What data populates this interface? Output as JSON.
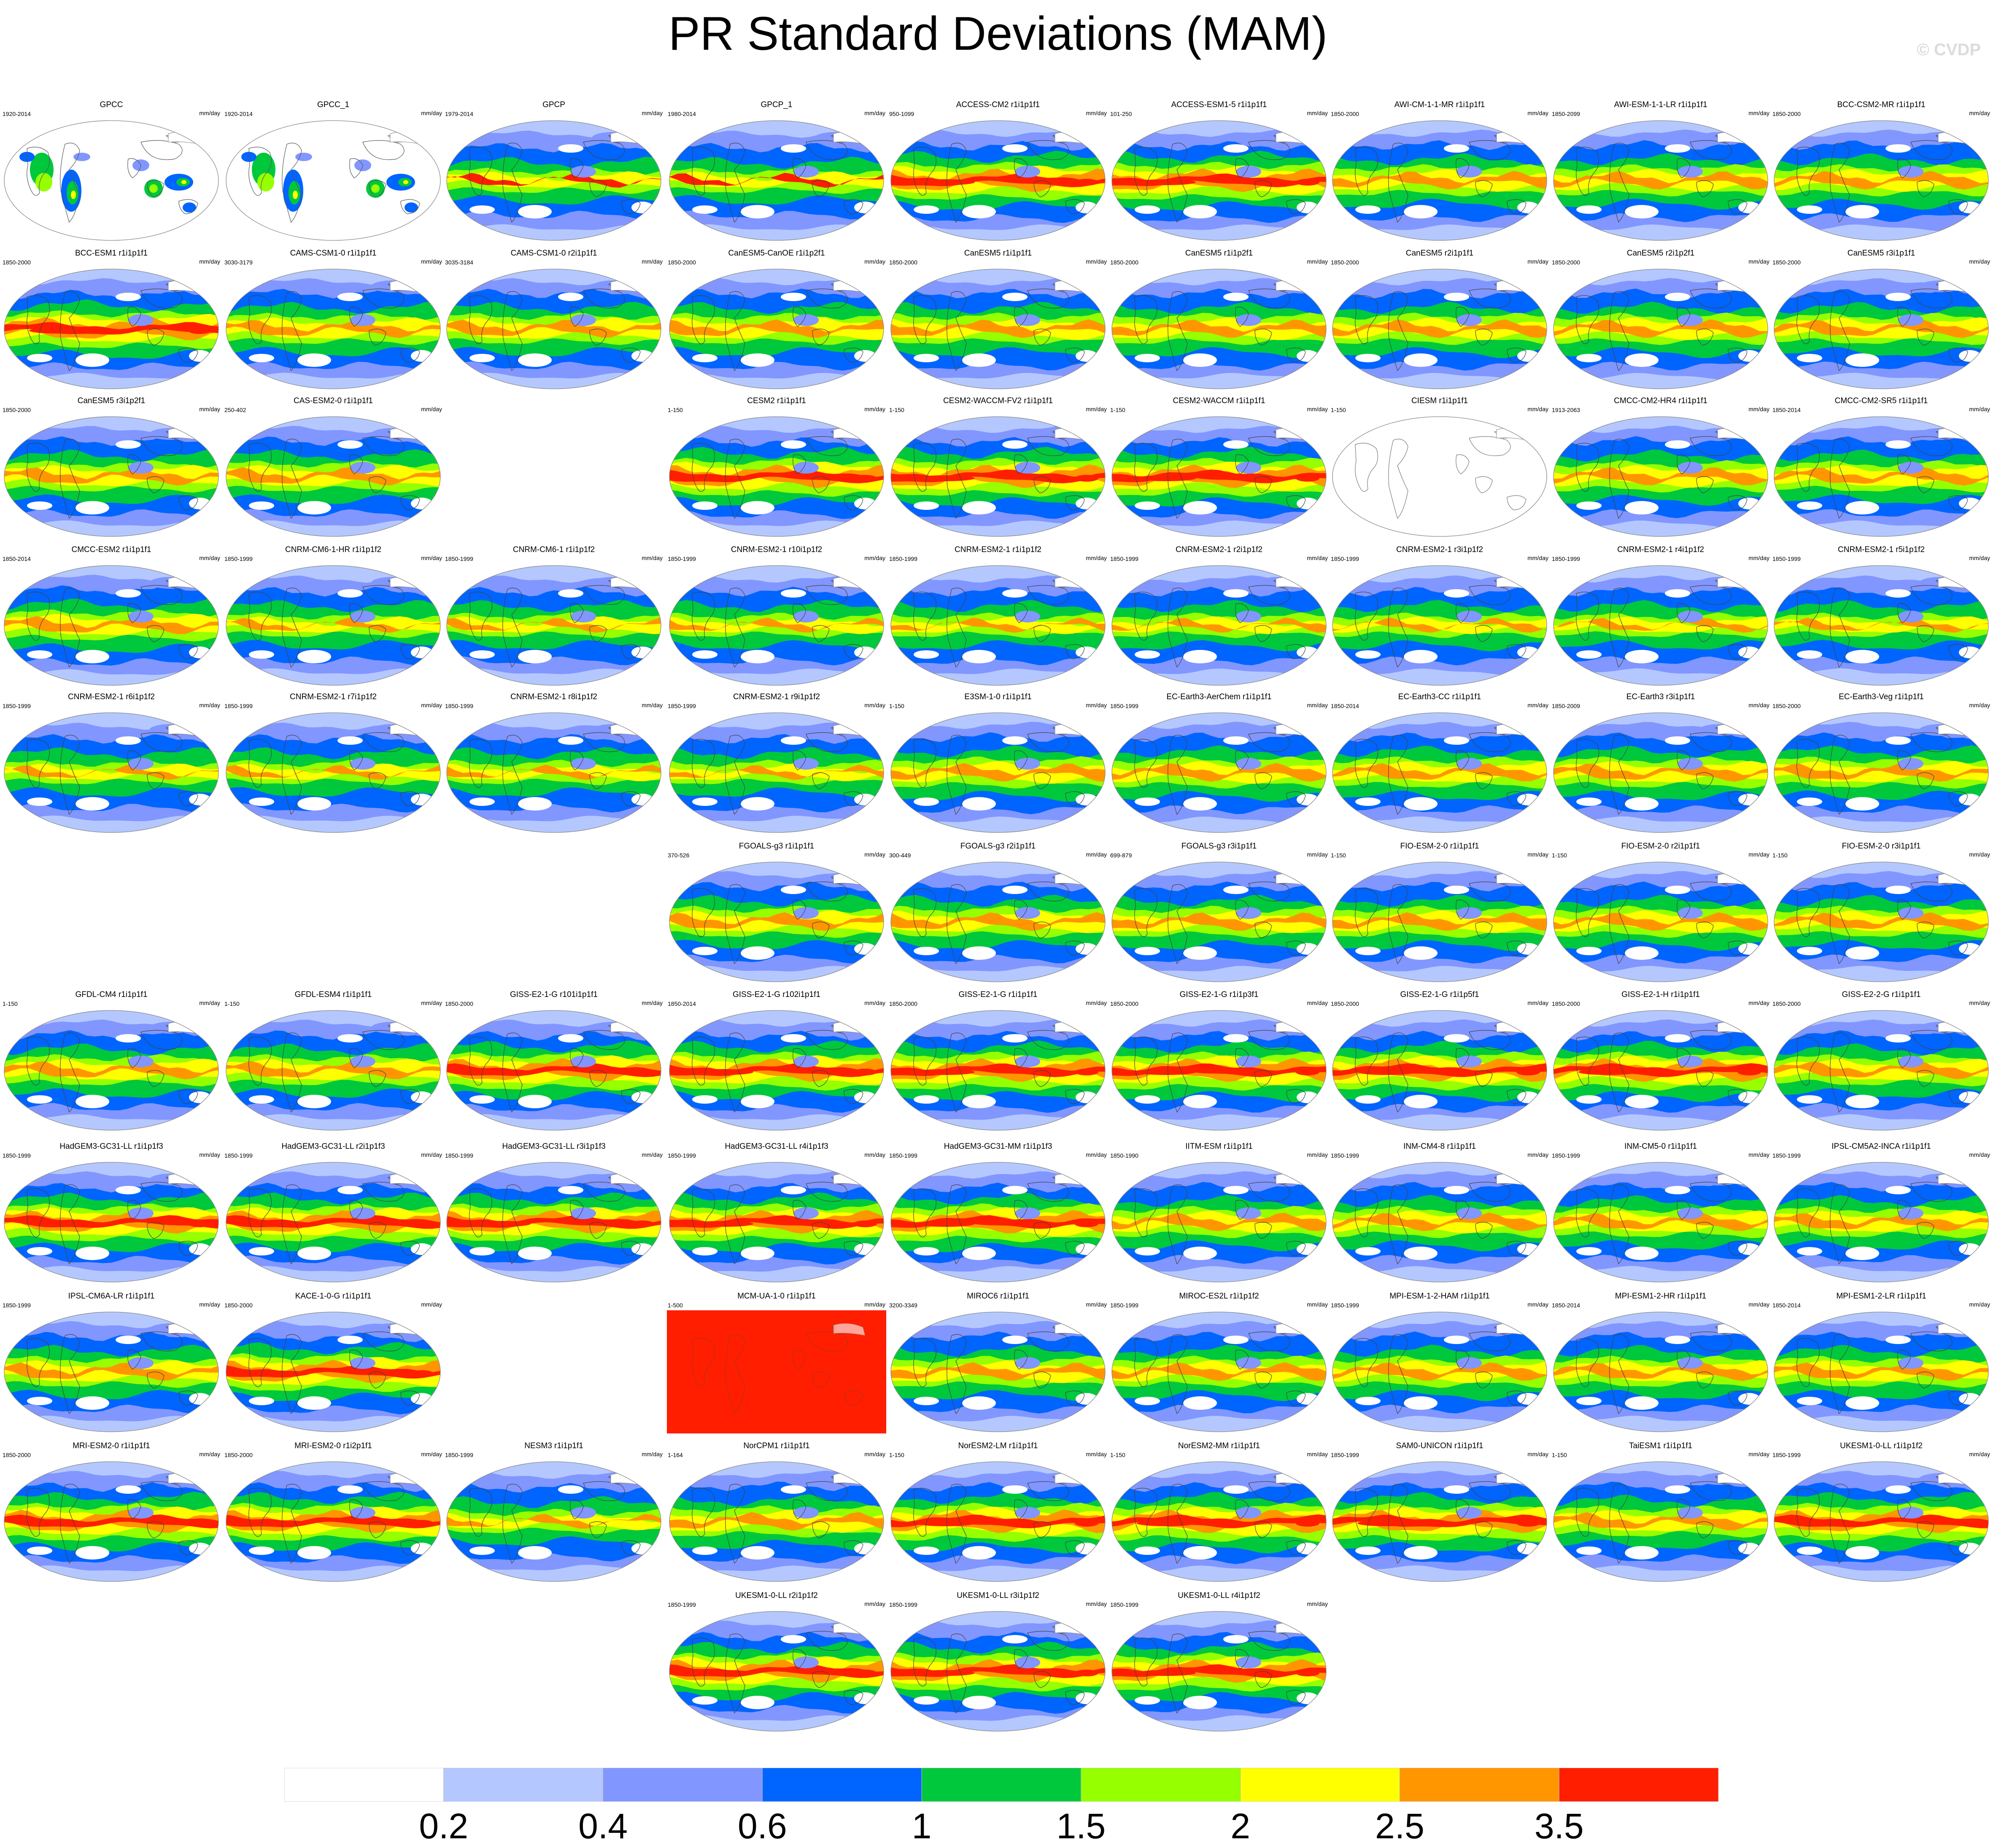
{
  "title": "PR Standard Deviations (MAM)",
  "watermark": "© CVDP",
  "chart_data": {
    "type": "map-panels",
    "title": "PR Standard Deviations (MAM)",
    "units": "mm/day",
    "colorbar": {
      "levels": [
        "0.2",
        "0.4",
        "0.6",
        "1",
        "1.5",
        "2",
        "2.5",
        "3.5"
      ],
      "colors": [
        "#ffffff",
        "#b4c8ff",
        "#8296ff",
        "#0064ff",
        "#00c83c",
        "#96ff00",
        "#ffff00",
        "#ff9600",
        "#ff1e00"
      ]
    },
    "panels": [
      {
        "title": "GPCC",
        "years": "1920-2014",
        "units": "mm/day",
        "row": 0,
        "col": 0,
        "style": "obs_land"
      },
      {
        "title": "GPCC_1",
        "years": "1920-2014",
        "units": "mm/day",
        "row": 0,
        "col": 1,
        "style": "obs_land"
      },
      {
        "title": "GPCP",
        "years": "1979-2014",
        "units": "mm/day",
        "row": 0,
        "col": 2,
        "style": "obs"
      },
      {
        "title": "GPCP_1",
        "years": "1980-2014",
        "units": "mm/day",
        "row": 0,
        "col": 3,
        "style": "obs"
      },
      {
        "title": "ACCESS-CM2 r1i1p1f1",
        "years": "950-1099",
        "units": "mm/day",
        "row": 0,
        "col": 4,
        "style": "strong"
      },
      {
        "title": "ACCESS-ESM1-5 r1i1p1f1",
        "years": "101-250",
        "units": "mm/day",
        "row": 0,
        "col": 5,
        "style": "strong"
      },
      {
        "title": "AWI-CM-1-1-MR r1i1p1f1",
        "years": "1850-2000",
        "units": "mm/day",
        "row": 0,
        "col": 6,
        "style": "medium"
      },
      {
        "title": "AWI-ESM-1-1-LR r1i1p1f1",
        "years": "1850-2099",
        "units": "mm/day",
        "row": 0,
        "col": 7,
        "style": "medium"
      },
      {
        "title": "BCC-CSM2-MR r1i1p1f1",
        "years": "1850-2000",
        "units": "mm/day",
        "row": 0,
        "col": 8,
        "style": "medium"
      },
      {
        "title": "BCC-ESM1 r1i1p1f1",
        "years": "1850-2000",
        "units": "mm/day",
        "row": 1,
        "col": 0,
        "style": "strong"
      },
      {
        "title": "CAMS-CSM1-0 r1i1p1f1",
        "years": "3030-3179",
        "units": "mm/day",
        "row": 1,
        "col": 1,
        "style": "medium"
      },
      {
        "title": "CAMS-CSM1-0 r2i1p1f1",
        "years": "3035-3184",
        "units": "mm/day",
        "row": 1,
        "col": 2,
        "style": "medium"
      },
      {
        "title": "CanESM5-CanOE r1i1p2f1",
        "years": "1850-2000",
        "units": "mm/day",
        "row": 1,
        "col": 3,
        "style": "medium"
      },
      {
        "title": "CanESM5 r1i1p1f1",
        "years": "1850-2000",
        "units": "mm/day",
        "row": 1,
        "col": 4,
        "style": "medium"
      },
      {
        "title": "CanESM5 r1i1p2f1",
        "years": "1850-2000",
        "units": "mm/day",
        "row": 1,
        "col": 5,
        "style": "medium"
      },
      {
        "title": "CanESM5 r2i1p1f1",
        "years": "1850-2000",
        "units": "mm/day",
        "row": 1,
        "col": 6,
        "style": "medium"
      },
      {
        "title": "CanESM5 r2i1p2f1",
        "years": "1850-2000",
        "units": "mm/day",
        "row": 1,
        "col": 7,
        "style": "medium"
      },
      {
        "title": "CanESM5 r3i1p1f1",
        "years": "1850-2000",
        "units": "mm/day",
        "row": 1,
        "col": 8,
        "style": "medium"
      },
      {
        "title": "CanESM5 r3i1p2f1",
        "years": "1850-2000",
        "units": "mm/day",
        "row": 2,
        "col": 0,
        "style": "medium"
      },
      {
        "title": "CAS-ESM2-0 r1i1p1f1",
        "years": "250-402",
        "units": "mm/day",
        "row": 2,
        "col": 1,
        "style": "medium"
      },
      {
        "title": "CESM2 r1i1p1f1",
        "years": "1-150",
        "units": "mm/day",
        "row": 2,
        "col": 3,
        "style": "strong"
      },
      {
        "title": "CESM2-WACCM-FV2 r1i1p1f1",
        "years": "1-150",
        "units": "mm/day",
        "row": 2,
        "col": 4,
        "style": "strong"
      },
      {
        "title": "CESM2-WACCM r1i1p1f1",
        "years": "1-150",
        "units": "mm/day",
        "row": 2,
        "col": 5,
        "style": "strong"
      },
      {
        "title": "CIESM r1i1p1f1",
        "years": "1-150",
        "units": "mm/day",
        "row": 2,
        "col": 6,
        "style": "empty"
      },
      {
        "title": "CMCC-CM2-HR4 r1i1p1f1",
        "years": "1913-2063",
        "units": "mm/day",
        "row": 2,
        "col": 7,
        "style": "medium"
      },
      {
        "title": "CMCC-CM2-SR5 r1i1p1f1",
        "years": "1850-2014",
        "units": "mm/day",
        "row": 2,
        "col": 8,
        "style": "medium"
      },
      {
        "title": "CMCC-ESM2 r1i1p1f1",
        "years": "1850-2014",
        "units": "mm/day",
        "row": 3,
        "col": 0,
        "style": "medium"
      },
      {
        "title": "CNRM-CM6-1-HR r1i1p1f2",
        "years": "1850-1999",
        "units": "mm/day",
        "row": 3,
        "col": 1,
        "style": "weak"
      },
      {
        "title": "CNRM-CM6-1 r1i1p1f2",
        "years": "1850-1999",
        "units": "mm/day",
        "row": 3,
        "col": 2,
        "style": "weak"
      },
      {
        "title": "CNRM-ESM2-1 r10i1p1f2",
        "years": "1850-1999",
        "units": "mm/day",
        "row": 3,
        "col": 3,
        "style": "weak"
      },
      {
        "title": "CNRM-ESM2-1 r1i1p1f2",
        "years": "1850-1999",
        "units": "mm/day",
        "row": 3,
        "col": 4,
        "style": "weak"
      },
      {
        "title": "CNRM-ESM2-1 r2i1p1f2",
        "years": "1850-1999",
        "units": "mm/day",
        "row": 3,
        "col": 5,
        "style": "weak"
      },
      {
        "title": "CNRM-ESM2-1 r3i1p1f2",
        "years": "1850-1999",
        "units": "mm/day",
        "row": 3,
        "col": 6,
        "style": "weak"
      },
      {
        "title": "CNRM-ESM2-1 r4i1p1f2",
        "years": "1850-1999",
        "units": "mm/day",
        "row": 3,
        "col": 7,
        "style": "weak"
      },
      {
        "title": "CNRM-ESM2-1 r5i1p1f2",
        "years": "1850-1999",
        "units": "mm/day",
        "row": 3,
        "col": 8,
        "style": "weak"
      },
      {
        "title": "CNRM-ESM2-1 r6i1p1f2",
        "years": "1850-1999",
        "units": "mm/day",
        "row": 4,
        "col": 0,
        "style": "weak"
      },
      {
        "title": "CNRM-ESM2-1 r7i1p1f2",
        "years": "1850-1999",
        "units": "mm/day",
        "row": 4,
        "col": 1,
        "style": "weak"
      },
      {
        "title": "CNRM-ESM2-1 r8i1p1f2",
        "years": "1850-1999",
        "units": "mm/day",
        "row": 4,
        "col": 2,
        "style": "weak"
      },
      {
        "title": "CNRM-ESM2-1 r9i1p1f2",
        "years": "1850-1999",
        "units": "mm/day",
        "row": 4,
        "col": 3,
        "style": "weak"
      },
      {
        "title": "E3SM-1-0 r1i1p1f1",
        "years": "1-150",
        "units": "mm/day",
        "row": 4,
        "col": 4,
        "style": "medium"
      },
      {
        "title": "EC-Earth3-AerChem r1i1p1f1",
        "years": "1850-1999",
        "units": "mm/day",
        "row": 4,
        "col": 5,
        "style": "medium"
      },
      {
        "title": "EC-Earth3-CC r1i1p1f1",
        "years": "1850-2014",
        "units": "mm/day",
        "row": 4,
        "col": 6,
        "style": "medium"
      },
      {
        "title": "EC-Earth3 r3i1p1f1",
        "years": "1850-2009",
        "units": "mm/day",
        "row": 4,
        "col": 7,
        "style": "medium"
      },
      {
        "title": "EC-Earth3-Veg r1i1p1f1",
        "years": "1850-2000",
        "units": "mm/day",
        "row": 4,
        "col": 8,
        "style": "medium"
      },
      {
        "title": "FGOALS-g3 r1i1p1f1",
        "years": "370-526",
        "units": "mm/day",
        "row": 5,
        "col": 3,
        "style": "medium"
      },
      {
        "title": "FGOALS-g3 r2i1p1f1",
        "years": "300-449",
        "units": "mm/day",
        "row": 5,
        "col": 4,
        "style": "medium"
      },
      {
        "title": "FGOALS-g3 r3i1p1f1",
        "years": "699-879",
        "units": "mm/day",
        "row": 5,
        "col": 5,
        "style": "medium"
      },
      {
        "title": "FIO-ESM-2-0 r1i1p1f1",
        "years": "1-150",
        "units": "mm/day",
        "row": 5,
        "col": 6,
        "style": "medium"
      },
      {
        "title": "FIO-ESM-2-0 r2i1p1f1",
        "years": "1-150",
        "units": "mm/day",
        "row": 5,
        "col": 7,
        "style": "medium"
      },
      {
        "title": "FIO-ESM-2-0 r3i1p1f1",
        "years": "1-150",
        "units": "mm/day",
        "row": 5,
        "col": 8,
        "style": "medium"
      },
      {
        "title": "GFDL-CM4 r1i1p1f1",
        "years": "1-150",
        "units": "mm/day",
        "row": 6,
        "col": 0,
        "style": "medium"
      },
      {
        "title": "GFDL-ESM4 r1i1p1f1",
        "years": "1-150",
        "units": "mm/day",
        "row": 6,
        "col": 1,
        "style": "medium"
      },
      {
        "title": "GISS-E2-1-G r101i1p1f1",
        "years": "1850-2000",
        "units": "mm/day",
        "row": 6,
        "col": 2,
        "style": "strong"
      },
      {
        "title": "GISS-E2-1-G r102i1p1f1",
        "years": "1850-2014",
        "units": "mm/day",
        "row": 6,
        "col": 3,
        "style": "strong"
      },
      {
        "title": "GISS-E2-1-G r1i1p1f1",
        "years": "1850-2000",
        "units": "mm/day",
        "row": 6,
        "col": 4,
        "style": "strong"
      },
      {
        "title": "GISS-E2-1-G r1i1p3f1",
        "years": "1850-2000",
        "units": "mm/day",
        "row": 6,
        "col": 5,
        "style": "strong"
      },
      {
        "title": "GISS-E2-1-G r1i1p5f1",
        "years": "1850-2000",
        "units": "mm/day",
        "row": 6,
        "col": 6,
        "style": "strong"
      },
      {
        "title": "GISS-E2-1-H r1i1p1f1",
        "years": "1850-2000",
        "units": "mm/day",
        "row": 6,
        "col": 7,
        "style": "strong"
      },
      {
        "title": "GISS-E2-2-G r1i1p1f1",
        "years": "1850-2000",
        "units": "mm/day",
        "row": 6,
        "col": 8,
        "style": "medium"
      },
      {
        "title": "HadGEM3-GC31-LL r1i1p1f3",
        "years": "1850-1999",
        "units": "mm/day",
        "row": 7,
        "col": 0,
        "style": "strong"
      },
      {
        "title": "HadGEM3-GC31-LL r2i1p1f3",
        "years": "1850-1999",
        "units": "mm/day",
        "row": 7,
        "col": 1,
        "style": "strong"
      },
      {
        "title": "HadGEM3-GC31-LL r3i1p1f3",
        "years": "1850-1999",
        "units": "mm/day",
        "row": 7,
        "col": 2,
        "style": "strong"
      },
      {
        "title": "HadGEM3-GC31-LL r4i1p1f3",
        "years": "1850-1999",
        "units": "mm/day",
        "row": 7,
        "col": 3,
        "style": "strong"
      },
      {
        "title": "HadGEM3-GC31-MM r1i1p1f3",
        "years": "1850-1999",
        "units": "mm/day",
        "row": 7,
        "col": 4,
        "style": "strong"
      },
      {
        "title": "IITM-ESM r1i1p1f1",
        "years": "1850-1990",
        "units": "mm/day",
        "row": 7,
        "col": 5,
        "style": "medium"
      },
      {
        "title": "INM-CM4-8 r1i1p1f1",
        "years": "1850-1999",
        "units": "mm/day",
        "row": 7,
        "col": 6,
        "style": "medium"
      },
      {
        "title": "INM-CM5-0 r1i1p1f1",
        "years": "1850-1999",
        "units": "mm/day",
        "row": 7,
        "col": 7,
        "style": "medium"
      },
      {
        "title": "IPSL-CM5A2-INCA r1i1p1f1",
        "years": "1850-1999",
        "units": "mm/day",
        "row": 7,
        "col": 8,
        "style": "medium"
      },
      {
        "title": "IPSL-CM6A-LR r1i1p1f1",
        "years": "1850-1999",
        "units": "mm/day",
        "row": 8,
        "col": 0,
        "style": "medium"
      },
      {
        "title": "KACE-1-0-G r1i1p1f1",
        "years": "1850-2000",
        "units": "mm/day",
        "row": 8,
        "col": 1,
        "style": "strong"
      },
      {
        "title": "MCM-UA-1-0 r1i1p1f1",
        "years": "1-500",
        "units": "mm/day",
        "row": 8,
        "col": 3,
        "style": "red_fill"
      },
      {
        "title": "MIROC6 r1i1p1f1",
        "years": "3200-3349",
        "units": "mm/day",
        "row": 8,
        "col": 4,
        "style": "medium"
      },
      {
        "title": "MIROC-ES2L r1i1p1f2",
        "years": "1850-1999",
        "units": "mm/day",
        "row": 8,
        "col": 5,
        "style": "medium"
      },
      {
        "title": "MPI-ESM-1-2-HAM r1i1p1f1",
        "years": "1850-1999",
        "units": "mm/day",
        "row": 8,
        "col": 6,
        "style": "medium"
      },
      {
        "title": "MPI-ESM1-2-HR r1i1p1f1",
        "years": "1850-2014",
        "units": "mm/day",
        "row": 8,
        "col": 7,
        "style": "medium"
      },
      {
        "title": "MPI-ESM1-2-LR r1i1p1f1",
        "years": "1850-2014",
        "units": "mm/day",
        "row": 8,
        "col": 8,
        "style": "medium"
      },
      {
        "title": "MRI-ESM2-0 r1i1p1f1",
        "years": "1850-2000",
        "units": "mm/day",
        "row": 9,
        "col": 0,
        "style": "strong"
      },
      {
        "title": "MRI-ESM2-0 r1i2p1f1",
        "years": "1850-2000",
        "units": "mm/day",
        "row": 9,
        "col": 1,
        "style": "strong"
      },
      {
        "title": "NESM3 r1i1p1f1",
        "years": "1850-1999",
        "units": "mm/day",
        "row": 9,
        "col": 2,
        "style": "weak"
      },
      {
        "title": "NorCPM1 r1i1p1f1",
        "years": "1-164",
        "units": "mm/day",
        "row": 9,
        "col": 3,
        "style": "medium"
      },
      {
        "title": "NorESM2-LM r1i1p1f1",
        "years": "1-150",
        "units": "mm/day",
        "row": 9,
        "col": 4,
        "style": "strong"
      },
      {
        "title": "NorESM2-MM r1i1p1f1",
        "years": "1-150",
        "units": "mm/day",
        "row": 9,
        "col": 5,
        "style": "strong"
      },
      {
        "title": "SAM0-UNICON r1i1p1f1",
        "years": "1850-1999",
        "units": "mm/day",
        "row": 9,
        "col": 6,
        "style": "strong"
      },
      {
        "title": "TaiESM1 r1i1p1f1",
        "years": "1-150",
        "units": "mm/day",
        "row": 9,
        "col": 7,
        "style": "medium"
      },
      {
        "title": "UKESM1-0-LL r1i1p1f2",
        "years": "1850-1999",
        "units": "mm/day",
        "row": 9,
        "col": 8,
        "style": "strong"
      },
      {
        "title": "UKESM1-0-LL r2i1p1f2",
        "years": "1850-1999",
        "units": "mm/day",
        "row": 10,
        "col": 3,
        "style": "strong"
      },
      {
        "title": "UKESM1-0-LL r3i1p1f2",
        "years": "1850-1999",
        "units": "mm/day",
        "row": 10,
        "col": 4,
        "style": "strong"
      },
      {
        "title": "UKESM1-0-LL r4i1p1f2",
        "years": "1850-1999",
        "units": "mm/day",
        "row": 10,
        "col": 5,
        "style": "strong"
      }
    ]
  }
}
